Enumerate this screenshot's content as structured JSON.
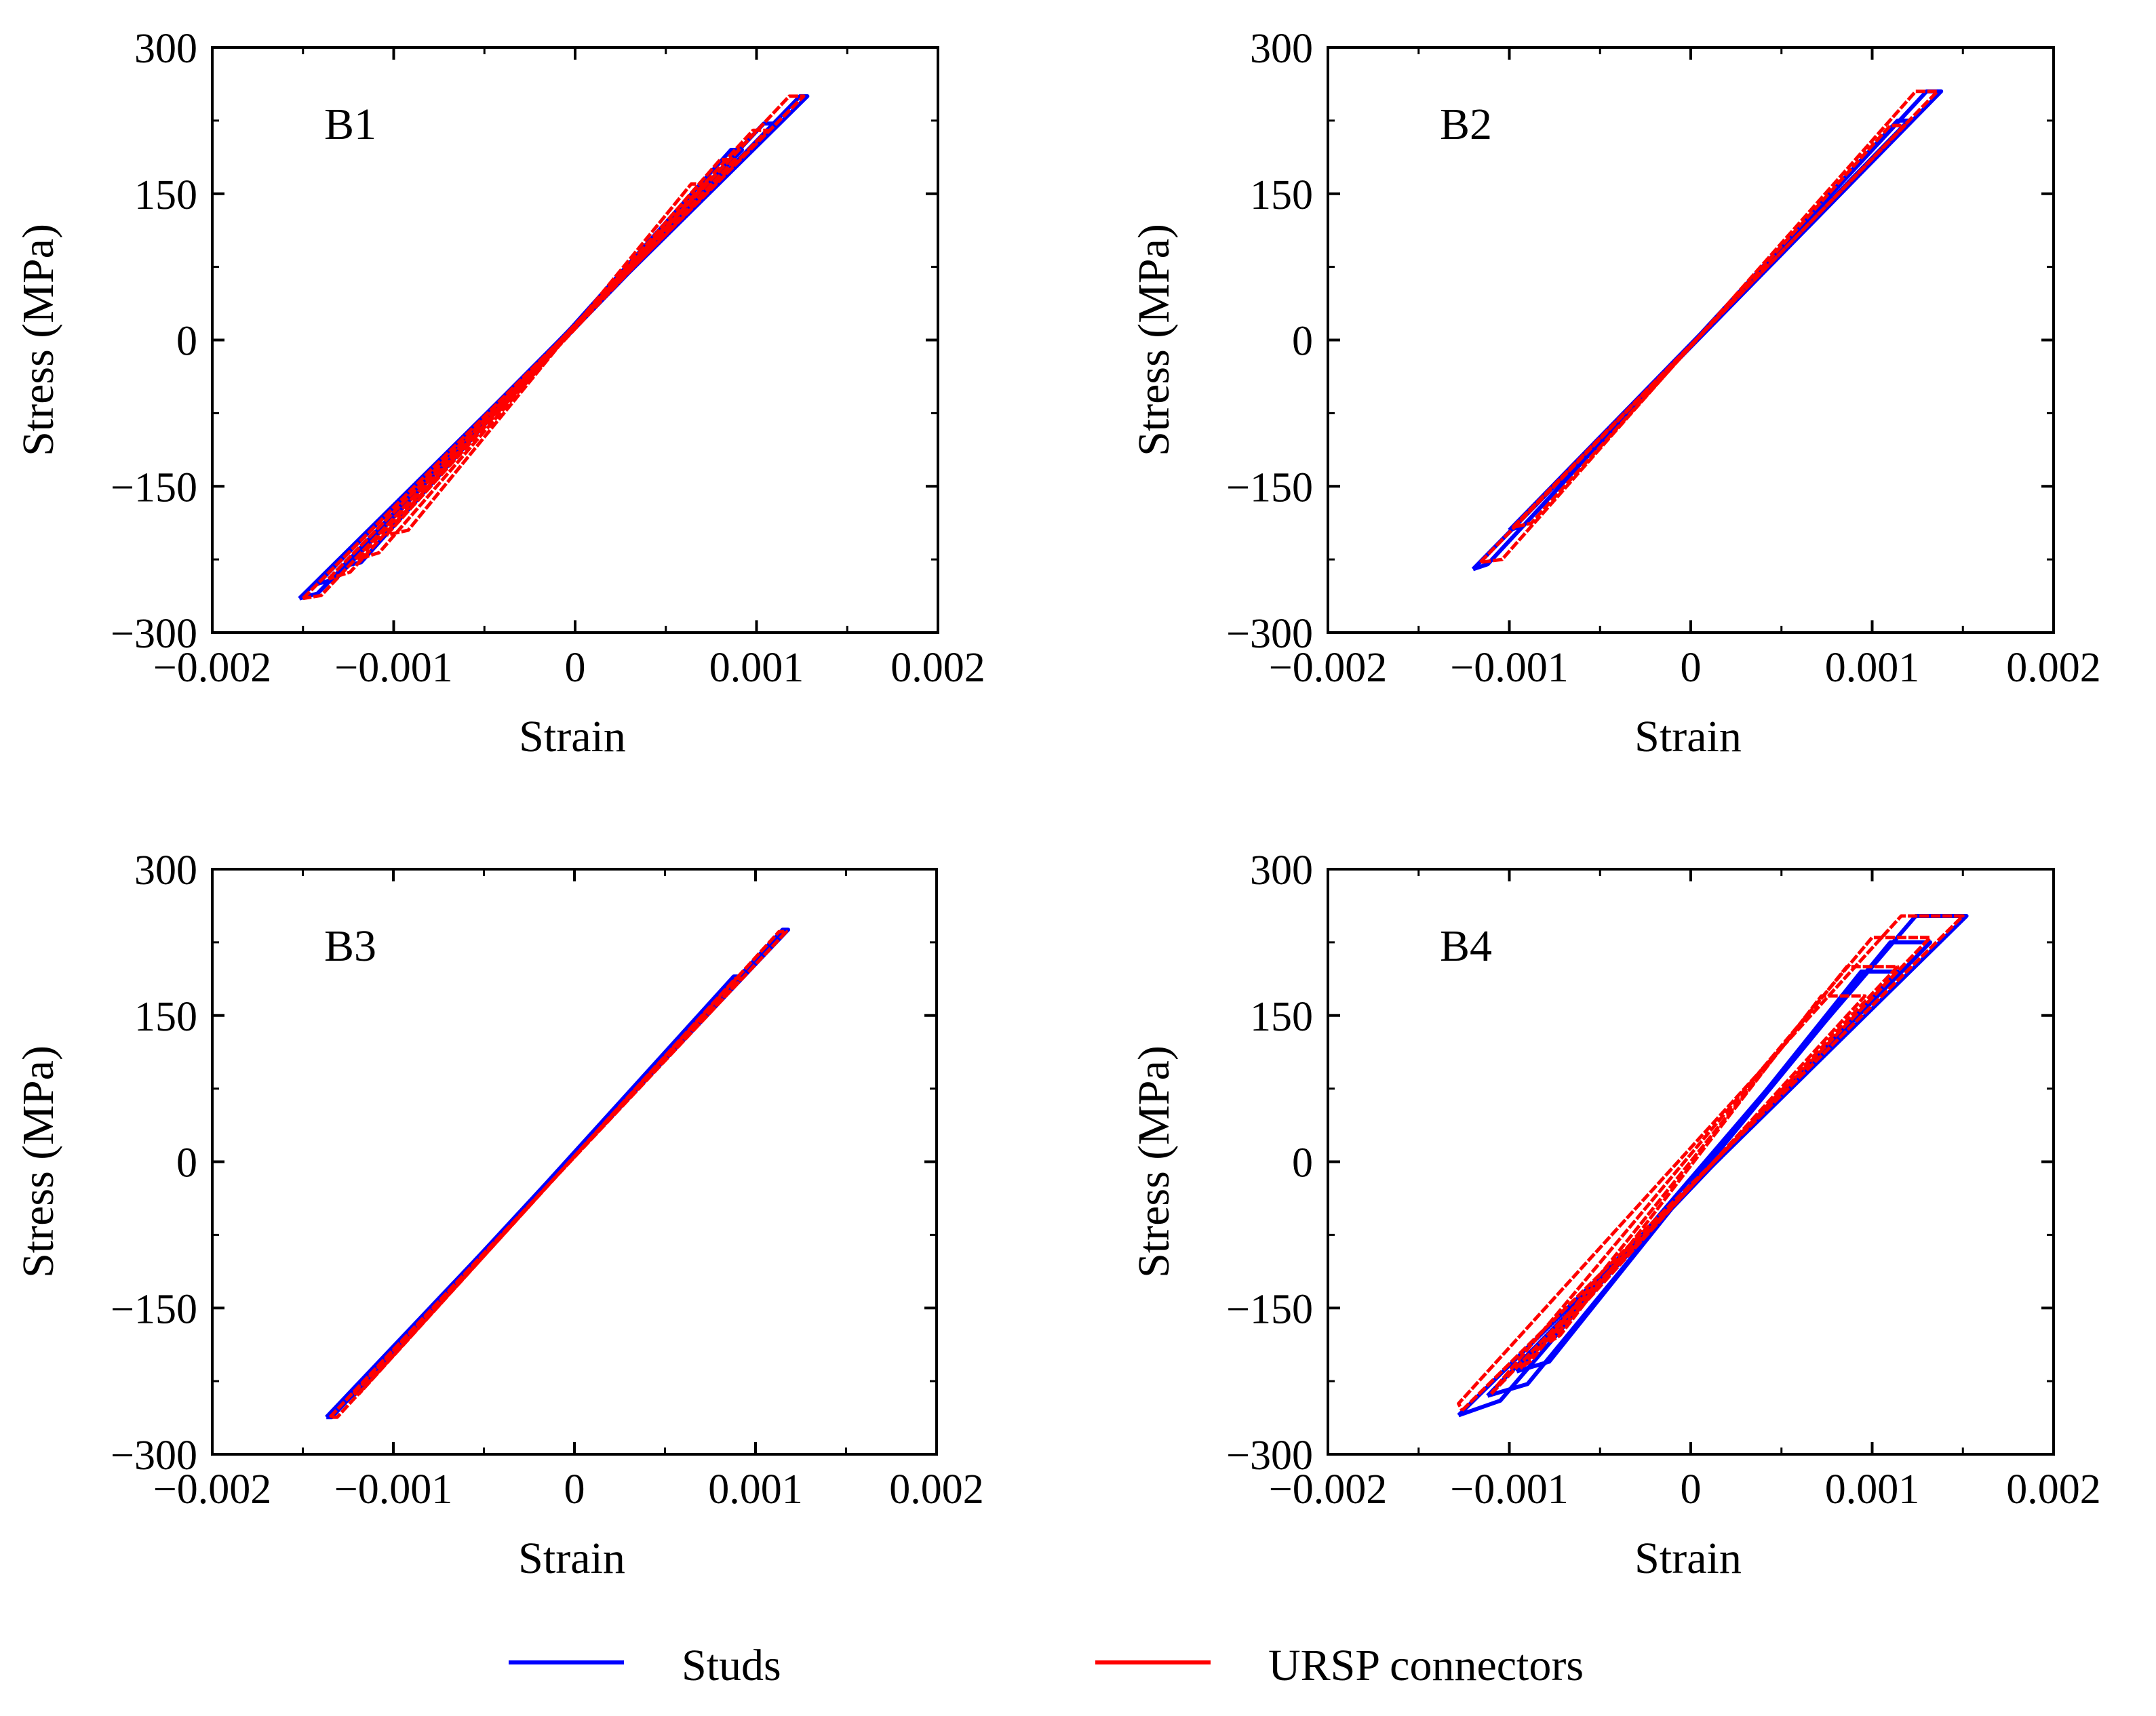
{
  "chart_data": [
    {
      "type": "line",
      "panel_label": "B1",
      "xlabel": "Strain",
      "ylabel": "Stress (MPa)",
      "xlim": [
        -0.002,
        0.002
      ],
      "ylim": [
        -300,
        300
      ],
      "xticks": [
        -0.002,
        -0.001,
        0,
        0.001,
        0.002
      ],
      "xtick_labels": [
        "−0.002",
        "−0.001",
        "0",
        "0.001",
        "0.002"
      ],
      "yticks": [
        -300,
        -150,
        0,
        150,
        300
      ],
      "ytick_labels": [
        "−300",
        "−150",
        "0",
        "150",
        "300"
      ],
      "series": [
        {
          "name": "Studs",
          "loops": [
            {
              "x": [
                -0.00152,
                0.00128,
                0.00124,
                -0.00142,
                -0.00152
              ],
              "y": [
                -265,
                250,
                250,
                -260,
                -265
              ]
            },
            {
              "x": [
                -0.00142,
                0.0011,
                0.00104,
                -0.00132,
                -0.00142
              ],
              "y": [
                -250,
                222,
                222,
                -245,
                -250
              ]
            },
            {
              "x": [
                -0.00128,
                0.00092,
                0.00086,
                -0.00118,
                -0.00128
              ],
              "y": [
                -232,
                195,
                195,
                -228,
                -232
              ]
            }
          ]
        },
        {
          "name": "URSP connectors",
          "loops": [
            {
              "x": [
                -0.0015,
                0.00126,
                0.00118,
                -0.0014,
                -0.0015
              ],
              "y": [
                -265,
                250,
                250,
                -262,
                -265
              ]
            },
            {
              "x": [
                -0.00136,
                0.00106,
                0.00098,
                -0.00124,
                -0.00136
              ],
              "y": [
                -245,
                215,
                215,
                -238,
                -245
              ]
            },
            {
              "x": [
                -0.0012,
                0.00088,
                0.0008,
                -0.00108,
                -0.0012
              ],
              "y": [
                -225,
                185,
                185,
                -218,
                -225
              ]
            },
            {
              "x": [
                -0.00104,
                0.00072,
                0.00064,
                -0.00092,
                -0.00104
              ],
              "y": [
                -200,
                160,
                160,
                -195,
                -200
              ]
            }
          ]
        }
      ]
    },
    {
      "type": "line",
      "panel_label": "B2",
      "xlabel": "Strain",
      "ylabel": "Stress (MPa)",
      "xlim": [
        -0.002,
        0.002
      ],
      "ylim": [
        -300,
        300
      ],
      "xticks": [
        -0.002,
        -0.001,
        0,
        0.001,
        0.002
      ],
      "xtick_labels": [
        "−0.002",
        "−0.001",
        "0",
        "0.001",
        "0.002"
      ],
      "yticks": [
        -300,
        -150,
        0,
        150,
        300
      ],
      "ytick_labels": [
        "−300",
        "−150",
        "0",
        "150",
        "300"
      ],
      "series": [
        {
          "name": "Studs",
          "loops": [
            {
              "x": [
                -0.0012,
                0.00138,
                0.0013,
                -0.00112,
                -0.0012
              ],
              "y": [
                -235,
                255,
                255,
                -230,
                -235
              ]
            },
            {
              "x": [
                -0.001,
                0.0012,
                0.00114,
                -0.00092,
                -0.001
              ],
              "y": [
                -195,
                225,
                225,
                -190,
                -195
              ]
            }
          ]
        },
        {
          "name": "URSP connectors",
          "loops": [
            {
              "x": [
                -0.00116,
                0.00136,
                0.00124,
                -0.00104,
                -0.00116
              ],
              "y": [
                -228,
                255,
                255,
                -225,
                -228
              ]
            },
            {
              "x": [
                -0.00098,
                0.00118,
                0.0011,
                -0.00088,
                -0.00098
              ],
              "y": [
                -192,
                220,
                220,
                -188,
                -192
              ]
            }
          ]
        }
      ]
    },
    {
      "type": "line",
      "panel_label": "B3",
      "xlabel": "Strain",
      "ylabel": "Stress (MPa)",
      "xlim": [
        -0.002,
        0.002
      ],
      "ylim": [
        -300,
        300
      ],
      "xticks": [
        -0.002,
        -0.001,
        0,
        0.001,
        0.002
      ],
      "xtick_labels": [
        "−0.002",
        "−0.001",
        "0",
        "0.001",
        "0.002"
      ],
      "yticks": [
        -300,
        -150,
        0,
        150,
        300
      ],
      "ytick_labels": [
        "−300",
        "−150",
        "0",
        "150",
        "300"
      ],
      "series": [
        {
          "name": "Studs",
          "loops": [
            {
              "x": [
                -0.00137,
                0.00118,
                0.00115,
                -0.00134,
                -0.00137
              ],
              "y": [
                -262,
                238,
                238,
                -262,
                -262
              ]
            },
            {
              "x": [
                -0.00124,
                0.0009,
                0.00088,
                -0.00122,
                -0.00124
              ],
              "y": [
                -240,
                190,
                190,
                -240,
                -240
              ]
            }
          ]
        },
        {
          "name": "URSP connectors",
          "loops": [
            {
              "x": [
                -0.00135,
                0.00117,
                0.00113,
                -0.00131,
                -0.00135
              ],
              "y": [
                -262,
                236,
                236,
                -262,
                -262
              ]
            },
            {
              "x": [
                -0.00122,
                0.00092,
                0.00089,
                -0.00119,
                -0.00122
              ],
              "y": [
                -238,
                188,
                188,
                -238,
                -238
              ]
            }
          ]
        }
      ]
    },
    {
      "type": "line",
      "panel_label": "B4",
      "xlabel": "Strain",
      "ylabel": "Stress (MPa)",
      "xlim": [
        -0.002,
        0.002
      ],
      "ylim": [
        -300,
        300
      ],
      "xticks": [
        -0.002,
        -0.001,
        0,
        0.001,
        0.002
      ],
      "xtick_labels": [
        "−0.002",
        "−0.001",
        "0",
        "0.001",
        "0.002"
      ],
      "yticks": [
        -300,
        -150,
        0,
        150,
        300
      ],
      "ytick_labels": [
        "−300",
        "−150",
        "0",
        "150",
        "300"
      ],
      "series": [
        {
          "name": "Studs",
          "loops": [
            {
              "x": [
                -0.00128,
                0.00152,
                0.00124,
                -0.00105,
                -0.00128
              ],
              "y": [
                -260,
                252,
                252,
                -245,
                -260
              ]
            },
            {
              "x": [
                -0.00112,
                0.00132,
                0.0011,
                -0.0009,
                -0.00112
              ],
              "y": [
                -240,
                225,
                225,
                -228,
                -240
              ]
            },
            {
              "x": [
                -0.00096,
                0.00114,
                0.00094,
                -0.00078,
                -0.00096
              ],
              "y": [
                -215,
                195,
                195,
                -205,
                -215
              ]
            }
          ]
        },
        {
          "name": "URSP connectors",
          "loops": [
            {
              "x": [
                -0.00126,
                0.0015,
                0.00116,
                -0.00128,
                -0.00126
              ],
              "y": [
                -255,
                252,
                252,
                -248,
                -255
              ]
            },
            {
              "x": [
                -0.0011,
                0.00132,
                0.001,
                -0.00106,
                -0.0011
              ],
              "y": [
                -238,
                230,
                230,
                -228,
                -238
              ]
            },
            {
              "x": [
                -0.00094,
                0.00114,
                0.00086,
                -0.00088,
                -0.00094
              ],
              "y": [
                -212,
                200,
                200,
                -204,
                -212
              ]
            },
            {
              "x": [
                -0.00078,
                0.00096,
                0.00072,
                -0.00072,
                -0.00078
              ],
              "y": [
                -185,
                170,
                170,
                -178,
                -185
              ]
            }
          ]
        }
      ]
    }
  ],
  "legend": {
    "items": [
      {
        "label": "Studs",
        "color": "#0000ff"
      },
      {
        "label": "URSP connectors",
        "color": "#ff0000"
      }
    ]
  },
  "colors": {
    "studs": "#0000ff",
    "ursp": "#ff0000",
    "axis": "#000000"
  }
}
